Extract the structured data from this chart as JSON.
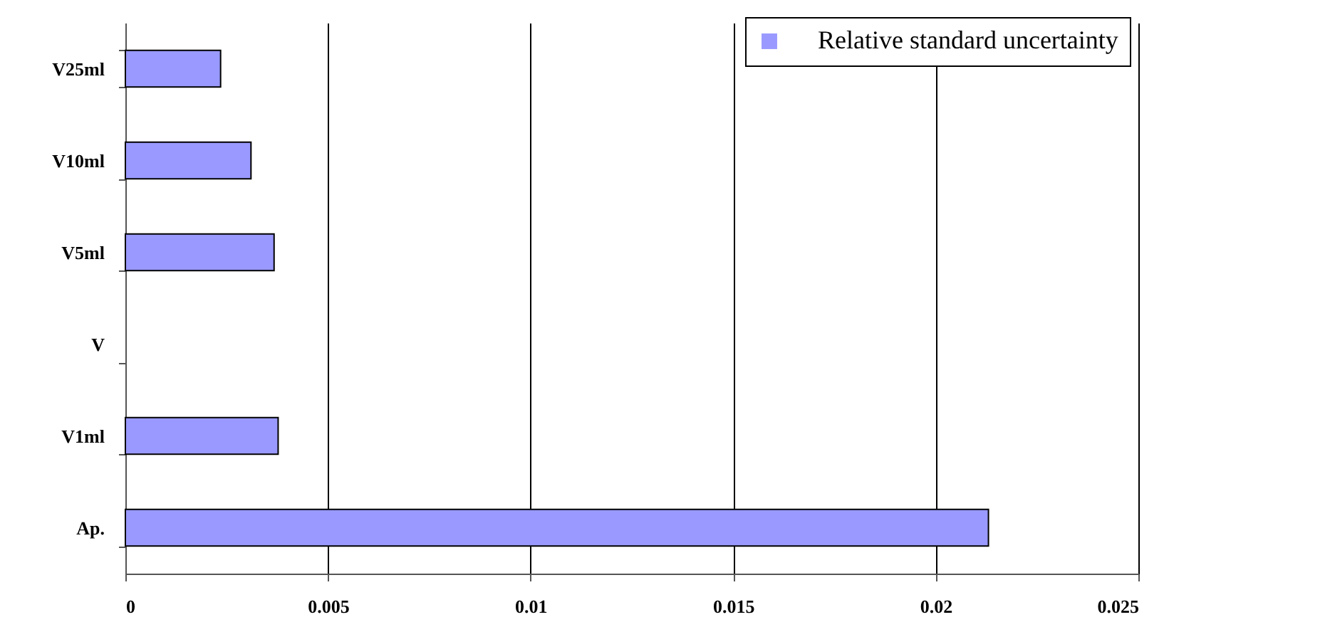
{
  "chart_data": {
    "type": "bar",
    "orientation": "horizontal",
    "categories": [
      "V25ml",
      "V10ml",
      "V5ml",
      "V",
      "V1ml",
      "Ap."
    ],
    "series": [
      {
        "name": "Relative standard uncertainty",
        "color": "#9999ff",
        "values": [
          0.00235,
          0.0031,
          0.00367,
          null,
          0.00377,
          0.0213
        ]
      }
    ],
    "xlim": [
      0,
      0.025
    ],
    "xticks": [
      0,
      0.005,
      0.01,
      0.015,
      0.02,
      0.025
    ],
    "grid": "x",
    "legend": "top right"
  }
}
